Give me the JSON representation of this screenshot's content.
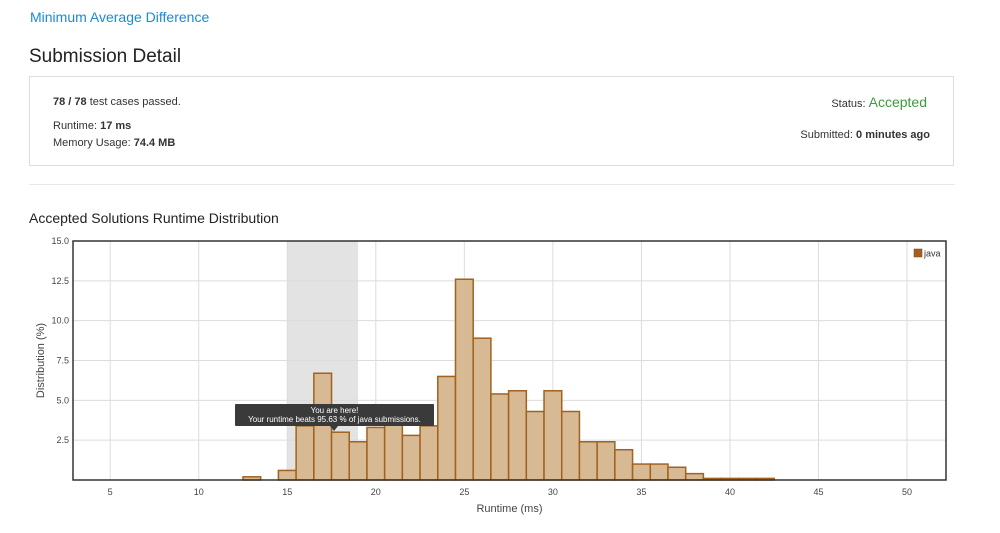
{
  "problem": {
    "title": "Minimum Average Difference"
  },
  "page": {
    "title": "Submission Detail"
  },
  "detail": {
    "cases_count": "78 / 78",
    "cases_suffix": " test cases passed.",
    "runtime_label": "Runtime: ",
    "runtime_value": "17 ms",
    "memory_label": "Memory Usage: ",
    "memory_value": "74.4 MB",
    "status_label": "Status: ",
    "status_value": "Accepted",
    "submitted_label": "Submitted: ",
    "submitted_value": "0 minutes ago"
  },
  "colors": {
    "accent": "#1a8ad8",
    "accepted": "#3d9a3d",
    "bar_fill": "#d7b994",
    "bar_stroke": "#a2621e"
  },
  "tooltip": {
    "line1": "You are here!",
    "line2": "Your runtime beats 95.63 % of java submissions."
  },
  "chart_data": {
    "type": "bar",
    "title": "Accepted Solutions Runtime Distribution",
    "xlabel": "Runtime (ms)",
    "ylabel": "Distribution (%)",
    "xlim": [
      2.9,
      52.2
    ],
    "ylim": [
      0,
      15
    ],
    "xticks": [
      5,
      10,
      15,
      20,
      25,
      30,
      35,
      40,
      45,
      50
    ],
    "yticks": [
      2.5,
      5.0,
      7.5,
      10.0,
      12.5,
      15.0
    ],
    "grid": true,
    "legend": {
      "placement": "top-right",
      "entries": [
        "java"
      ]
    },
    "highlight_range": [
      15,
      19
    ],
    "x": [
      13,
      15,
      16,
      17,
      18,
      19,
      20,
      21,
      22,
      23,
      24,
      25,
      26,
      27,
      28,
      29,
      30,
      31,
      32,
      33,
      34,
      35,
      36,
      37,
      38,
      39,
      40,
      41,
      42
    ],
    "values": [
      0.2,
      0.6,
      3.4,
      6.7,
      3.0,
      2.4,
      3.3,
      3.5,
      2.8,
      3.4,
      6.5,
      12.6,
      8.9,
      5.4,
      5.6,
      4.3,
      5.6,
      4.3,
      2.4,
      2.4,
      1.9,
      1.0,
      1.0,
      0.8,
      0.4,
      0.1,
      0.1,
      0.1,
      0.1
    ]
  }
}
